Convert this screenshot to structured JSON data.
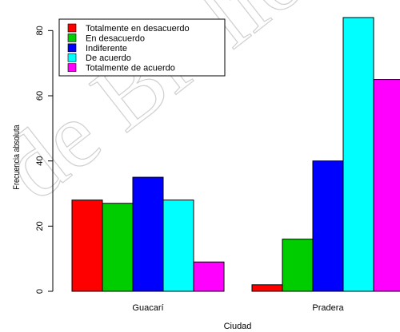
{
  "chart_data": {
    "type": "bar",
    "categories": [
      "Guacarí",
      "Pradera"
    ],
    "series": [
      {
        "name": "Totalmente en desacuerdo",
        "color": "#ff0000",
        "values": [
          28,
          2
        ]
      },
      {
        "name": "En desacuerdo",
        "color": "#00cd00",
        "values": [
          27,
          16
        ]
      },
      {
        "name": "Indiferente",
        "color": "#0000ff",
        "values": [
          35,
          40
        ]
      },
      {
        "name": "De acuerdo",
        "color": "#00ffff",
        "values": [
          28,
          84
        ]
      },
      {
        "name": "Totalmente de acuerdo",
        "color": "#ff00ff",
        "values": [
          9,
          65
        ]
      }
    ],
    "title": "",
    "xlabel": "Ciudad",
    "ylabel": "Frecuencia absoluta",
    "ylim": [
      0,
      84
    ],
    "yticks": [
      0,
      20,
      40,
      60,
      80
    ],
    "grid": false,
    "legend_position": "top-left"
  },
  "watermark": "de Biblio"
}
